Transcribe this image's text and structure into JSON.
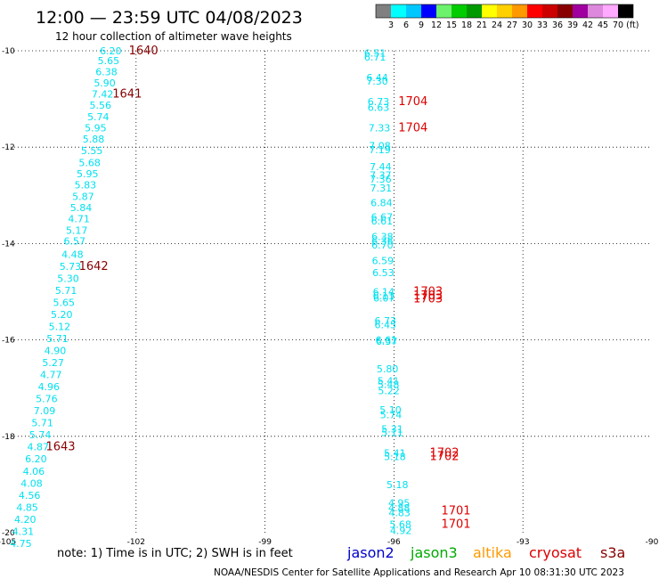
{
  "header": {
    "title": "12:00 — 23:59 UTC 04/08/2023",
    "subtitle": "12 hour collection of altimeter wave heights"
  },
  "colorbar": {
    "labels": [
      "3",
      "6",
      "9",
      "12",
      "15",
      "18",
      "21",
      "24",
      "27",
      "30",
      "33",
      "36",
      "39",
      "42",
      "45",
      "70 (ft)"
    ],
    "colors": [
      "#808080",
      "#00ffff",
      "#00c8ff",
      "#0000ff",
      "#6cf26c",
      "#00cc00",
      "#009900",
      "#ffff00",
      "#ffd000",
      "#ff9900",
      "#ff0000",
      "#cc0000",
      "#880000",
      "#a000a0",
      "#dd88dd",
      "#ffaaff",
      "#000000"
    ]
  },
  "footer": {
    "note": "note:  1) Time is in UTC;  2) SWH is in feet",
    "credit": "NOAA/NESDIS Center for Satellite Applications and Research    Apr 10 08:31:30 UTC 2023",
    "satellites": [
      {
        "name": "jason2",
        "color": "#0000cc"
      },
      {
        "name": "jason3",
        "color": "#00aa00"
      },
      {
        "name": "altika",
        "color": "#ff9900"
      },
      {
        "name": "cryosat",
        "color": "#dd0000"
      },
      {
        "name": "s3a",
        "color": "#880000"
      }
    ]
  },
  "chart_data": {
    "type": "scatter",
    "xlim": [
      -105,
      -90
    ],
    "ylim": [
      -20,
      -10
    ],
    "x_ticks": [
      "-105",
      "-102",
      "-99",
      "-96",
      "-93",
      "-90"
    ],
    "y_ticks": [
      "-10",
      "-12",
      "-14",
      "-16",
      "-18",
      "-20"
    ],
    "grid": true,
    "swh_color": "#00e0f0",
    "series": [
      {
        "name": "s3a",
        "color": "#880000",
        "points": [
          {
            "x": -102.59,
            "y": -10.0,
            "v": "6.20"
          },
          {
            "x": -102.64,
            "y": -10.2,
            "v": "5.65"
          },
          {
            "x": -102.69,
            "y": -10.43,
            "v": "6.38"
          },
          {
            "x": -102.73,
            "y": -10.67,
            "v": "5.90"
          },
          {
            "x": -102.78,
            "y": -10.9,
            "v": "7.42"
          },
          {
            "x": -102.83,
            "y": -11.13,
            "v": "5.56"
          },
          {
            "x": -102.88,
            "y": -11.37,
            "v": "5.74"
          },
          {
            "x": -102.94,
            "y": -11.6,
            "v": "5.95"
          },
          {
            "x": -102.99,
            "y": -11.83,
            "v": "5.88"
          },
          {
            "x": -103.03,
            "y": -12.07,
            "v": "5.55"
          },
          {
            "x": -103.08,
            "y": -12.32,
            "v": "5.68"
          },
          {
            "x": -103.13,
            "y": -12.55,
            "v": "5.95"
          },
          {
            "x": -103.18,
            "y": -12.78,
            "v": "5.83"
          },
          {
            "x": -103.23,
            "y": -13.02,
            "v": "5.87"
          },
          {
            "x": -103.28,
            "y": -13.25,
            "v": "5.84"
          },
          {
            "x": -103.33,
            "y": -13.48,
            "v": "4.71"
          },
          {
            "x": -103.38,
            "y": -13.72,
            "v": "5.17"
          },
          {
            "x": -103.43,
            "y": -13.95,
            "v": "6.57"
          },
          {
            "x": -103.48,
            "y": -14.22,
            "v": "4.48"
          },
          {
            "x": -103.53,
            "y": -14.47,
            "v": "5.73"
          },
          {
            "x": -103.58,
            "y": -14.72,
            "v": "5.30"
          },
          {
            "x": -103.63,
            "y": -14.97,
            "v": "5.71"
          },
          {
            "x": -103.68,
            "y": -15.22,
            "v": "5.65"
          },
          {
            "x": -103.73,
            "y": -15.47,
            "v": "5.20"
          },
          {
            "x": -103.78,
            "y": -15.72,
            "v": "5.12"
          },
          {
            "x": -103.83,
            "y": -15.97,
            "v": "5.71"
          },
          {
            "x": -103.88,
            "y": -16.22,
            "v": "4.90"
          },
          {
            "x": -103.93,
            "y": -16.47,
            "v": "5.27"
          },
          {
            "x": -103.98,
            "y": -16.72,
            "v": "4.77"
          },
          {
            "x": -104.03,
            "y": -16.97,
            "v": "4.96"
          },
          {
            "x": -104.08,
            "y": -17.22,
            "v": "5.76"
          },
          {
            "x": -104.13,
            "y": -17.47,
            "v": "7.09"
          },
          {
            "x": -104.18,
            "y": -17.72,
            "v": "5.71"
          },
          {
            "x": -104.23,
            "y": -17.97,
            "v": "5.74"
          },
          {
            "x": -104.28,
            "y": -18.22,
            "v": "4.87"
          },
          {
            "x": -104.33,
            "y": -18.47,
            "v": "6.20"
          },
          {
            "x": -104.38,
            "y": -18.72,
            "v": "4.06"
          },
          {
            "x": -104.43,
            "y": -18.97,
            "v": "4.08"
          },
          {
            "x": -104.48,
            "y": -19.22,
            "v": "4.56"
          },
          {
            "x": -104.53,
            "y": -19.47,
            "v": "4.85"
          },
          {
            "x": -104.58,
            "y": -19.72,
            "v": "4.20"
          },
          {
            "x": -104.63,
            "y": -19.97,
            "v": "4.31"
          },
          {
            "x": -104.68,
            "y": -20.22,
            "v": "4.75"
          }
        ],
        "passes": [
          {
            "x": -102.17,
            "y": -10.0,
            "label": "1640"
          },
          {
            "x": -102.55,
            "y": -10.9,
            "label": "1641"
          },
          {
            "x": -103.33,
            "y": -14.47,
            "label": "1642"
          },
          {
            "x": -104.1,
            "y": -18.22,
            "label": "1643"
          }
        ]
      },
      {
        "name": "cryosat",
        "color": "#dd0000",
        "points": [
          {
            "x": -96.44,
            "y": -10.05,
            "v": "6.51"
          },
          {
            "x": -96.44,
            "y": -10.13,
            "v": "6.71"
          },
          {
            "x": -96.39,
            "y": -10.55,
            "v": "6.44"
          },
          {
            "x": -96.39,
            "y": -10.63,
            "v": "7.30"
          },
          {
            "x": -96.36,
            "y": -11.05,
            "v": "6.73"
          },
          {
            "x": -96.36,
            "y": -11.17,
            "v": "6.63"
          },
          {
            "x": -96.34,
            "y": -11.6,
            "v": "7.33"
          },
          {
            "x": -96.33,
            "y": -11.97,
            "v": "7.08"
          },
          {
            "x": -96.33,
            "y": -12.05,
            "v": "7.19"
          },
          {
            "x": -96.31,
            "y": -12.4,
            "v": "7.44"
          },
          {
            "x": -96.31,
            "y": -12.58,
            "v": "7.37"
          },
          {
            "x": -96.31,
            "y": -12.66,
            "v": "7.36"
          },
          {
            "x": -96.3,
            "y": -12.85,
            "v": "7.31"
          },
          {
            "x": -96.29,
            "y": -13.15,
            "v": "6.84"
          },
          {
            "x": -96.28,
            "y": -13.45,
            "v": "6.67"
          },
          {
            "x": -96.28,
            "y": -13.53,
            "v": "6.61"
          },
          {
            "x": -96.27,
            "y": -13.85,
            "v": "6.38"
          },
          {
            "x": -96.27,
            "y": -13.95,
            "v": "6.36"
          },
          {
            "x": -96.27,
            "y": -14.03,
            "v": "6.70"
          },
          {
            "x": -96.26,
            "y": -14.35,
            "v": "6.59"
          },
          {
            "x": -96.25,
            "y": -14.6,
            "v": "6.53"
          },
          {
            "x": -96.24,
            "y": -15.0,
            "v": "6.14"
          },
          {
            "x": -96.24,
            "y": -15.08,
            "v": "6.11"
          },
          {
            "x": -96.23,
            "y": -15.13,
            "v": "6.07"
          },
          {
            "x": -96.2,
            "y": -15.6,
            "v": "6.73"
          },
          {
            "x": -96.2,
            "y": -15.68,
            "v": "6.45"
          },
          {
            "x": -96.18,
            "y": -16.0,
            "v": "6.61"
          },
          {
            "x": -96.17,
            "y": -16.03,
            "v": "6.37"
          },
          {
            "x": -96.15,
            "y": -16.6,
            "v": "5.80"
          },
          {
            "x": -96.13,
            "y": -16.85,
            "v": "5.41"
          },
          {
            "x": -96.13,
            "y": -16.92,
            "v": "5.48"
          },
          {
            "x": -96.12,
            "y": -17.05,
            "v": "5.22"
          },
          {
            "x": -96.08,
            "y": -17.45,
            "v": "5.10"
          },
          {
            "x": -96.07,
            "y": -17.55,
            "v": "5.74"
          },
          {
            "x": -96.04,
            "y": -17.85,
            "v": "5.31"
          },
          {
            "x": -96.04,
            "y": -17.92,
            "v": "5.11"
          },
          {
            "x": -95.98,
            "y": -18.35,
            "v": "5.41"
          },
          {
            "x": -95.98,
            "y": -18.42,
            "v": "5.18"
          },
          {
            "x": -95.92,
            "y": -19.0,
            "v": "5.18"
          },
          {
            "x": -95.88,
            "y": -19.38,
            "v": "4.95"
          },
          {
            "x": -95.88,
            "y": -19.48,
            "v": "4.88"
          },
          {
            "x": -95.87,
            "y": -19.58,
            "v": "4.83"
          },
          {
            "x": -95.85,
            "y": -19.82,
            "v": "5.68"
          },
          {
            "x": -95.84,
            "y": -19.95,
            "v": "4.92"
          }
        ],
        "passes": [
          {
            "x": -95.9,
            "y": -11.05,
            "label": "1704"
          },
          {
            "x": -95.9,
            "y": -11.6,
            "label": "1704"
          },
          {
            "x": -95.55,
            "y": -15.0,
            "label": "1703"
          },
          {
            "x": -95.55,
            "y": -15.08,
            "label": "1703"
          },
          {
            "x": -95.55,
            "y": -15.15,
            "label": "1703"
          },
          {
            "x": -95.17,
            "y": -18.35,
            "label": "1702"
          },
          {
            "x": -95.17,
            "y": -18.42,
            "label": "1702"
          },
          {
            "x": -94.9,
            "y": -19.55,
            "label": "1701"
          },
          {
            "x": -94.9,
            "y": -19.82,
            "label": "1701"
          }
        ]
      }
    ]
  }
}
